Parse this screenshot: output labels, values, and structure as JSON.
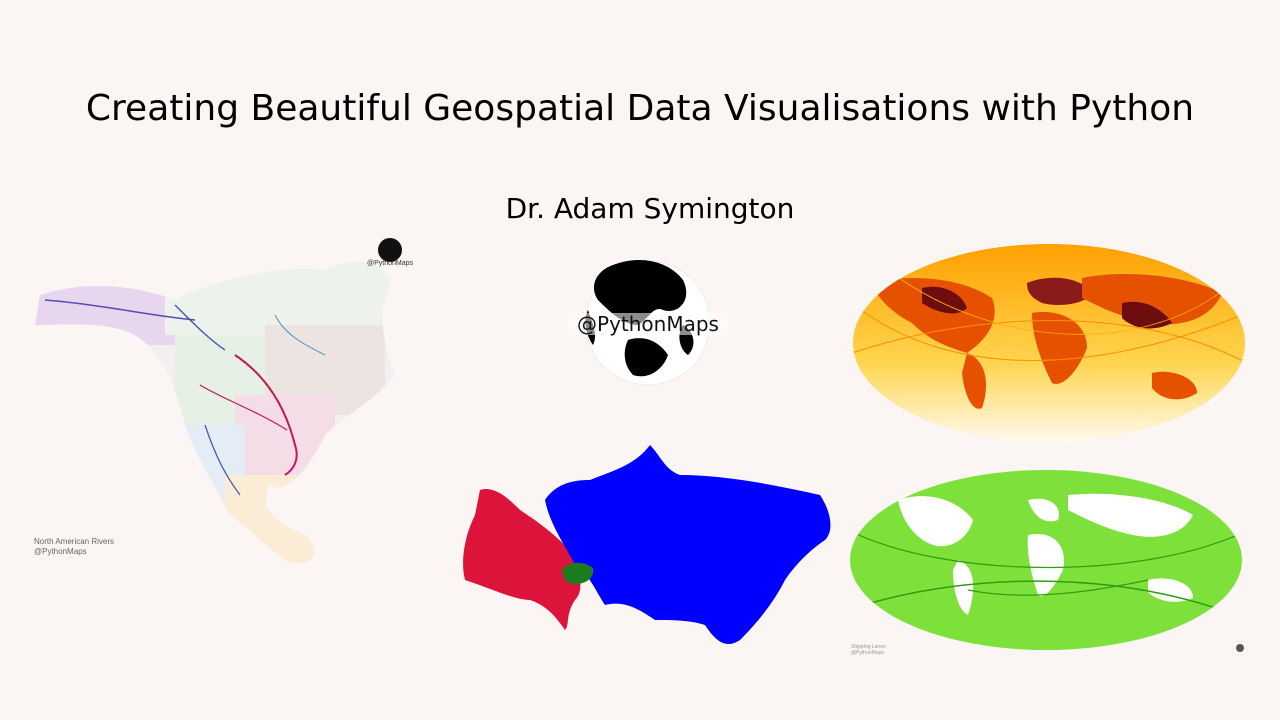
{
  "slide": {
    "title": "Creating Beautiful Geospatial Data Visualisations with Python",
    "author": "Dr. Adam Symington"
  },
  "logo": {
    "handle": "@PythonMaps"
  },
  "rivers_map": {
    "caption_line1": "North American Rivers",
    "caption_line2": "@PythonMaps",
    "badge": "@PythonMaps",
    "colors": [
      "#7a6bd0",
      "#c070c0",
      "#2e7d32",
      "#c2185b",
      "#e0a040",
      "#4a90c0",
      "#8d6e63",
      "#9e9e9e"
    ]
  },
  "flights_map": {
    "colors": [
      "#ffe082",
      "#ffa000",
      "#e65100",
      "#6d0d0d"
    ]
  },
  "empire_map": {
    "colors": {
      "west": "#dc143c",
      "east": "#0000ff",
      "centre": "#1e7b1e"
    }
  },
  "shipping_map": {
    "caption_line1": "Shipping Lanes",
    "caption_line2": "@PythonMaps",
    "colors": [
      "#66dd22",
      "#33aa11"
    ]
  }
}
